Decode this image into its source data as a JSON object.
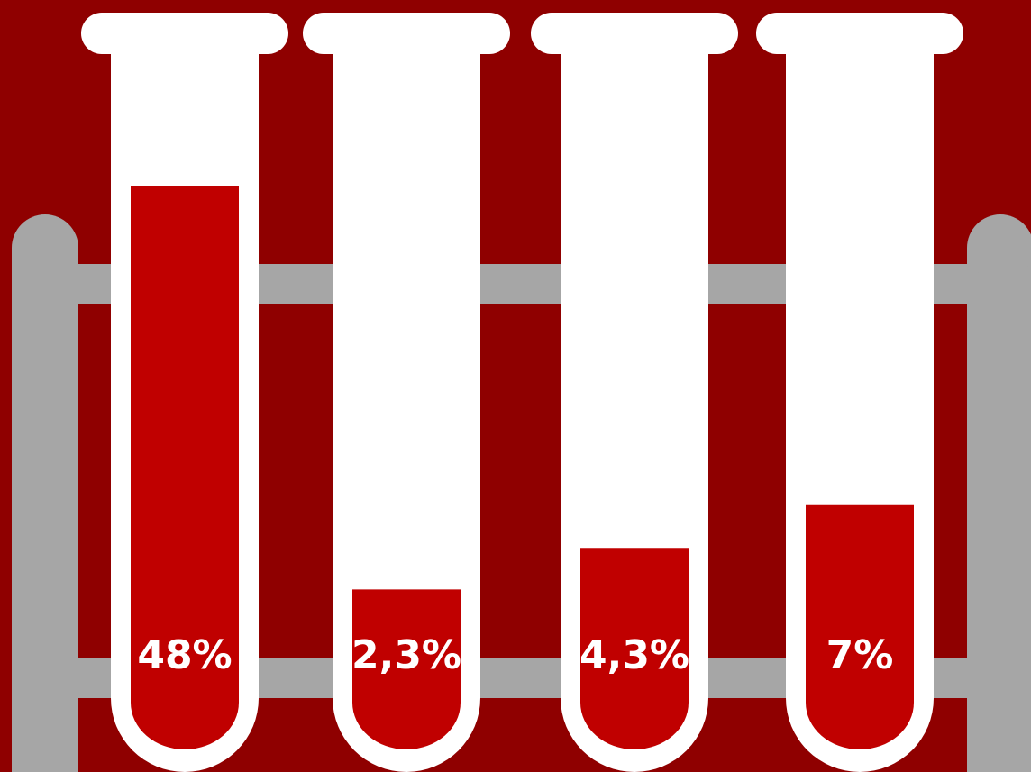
{
  "chart_data": {
    "type": "bar",
    "values": [
      48,
      2.3,
      4.3,
      7
    ],
    "value_labels": [
      "48%",
      "2,3%",
      "4,3%",
      "7%"
    ],
    "color": "#c00000"
  }
}
